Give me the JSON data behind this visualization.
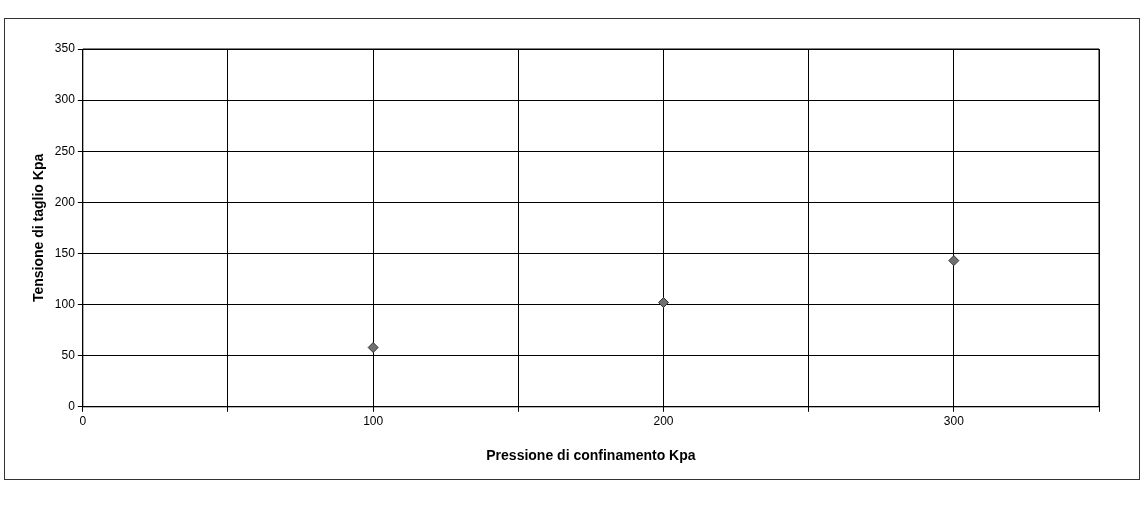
{
  "chart_data": {
    "type": "scatter",
    "xlabel": "Pressione di confinamento Kpa",
    "ylabel": "Tensione di taglio Kpa",
    "x": [
      100,
      200,
      300
    ],
    "series": [
      {
        "color": "#707070",
        "values": [
          58,
          102,
          143
        ]
      }
    ],
    "xlim": [
      0,
      350
    ],
    "xticks": [
      0,
      {
        "value": 50,
        "label": null
      },
      100,
      {
        "value": 150,
        "label": null
      },
      200,
      {
        "value": 250,
        "label": null
      },
      300,
      {
        "value": 350,
        "label": null
      }
    ],
    "ylim": [
      0,
      350
    ],
    "yticks": [
      0,
      50,
      100,
      150,
      200,
      250,
      300,
      350
    ],
    "grid": true,
    "legend": false,
    "marker": "diamond"
  }
}
